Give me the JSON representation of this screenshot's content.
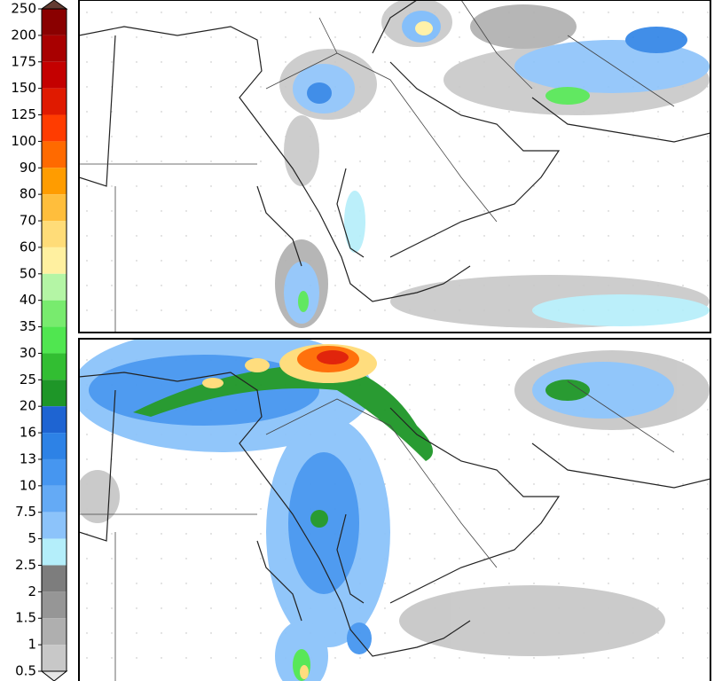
{
  "colorbar": {
    "labels": [
      250,
      200,
      175,
      150,
      125,
      100,
      90,
      80,
      70,
      60,
      50,
      40,
      35,
      30,
      25,
      20,
      16,
      13,
      10,
      7.5,
      5,
      2.5,
      2,
      1.5,
      1,
      0.5
    ],
    "colors": [
      "#8a0000",
      "#a80000",
      "#c40000",
      "#e01a00",
      "#ff3c00",
      "#ff6a00",
      "#ff9c00",
      "#ffbe3c",
      "#ffdc78",
      "#fff0a0",
      "#b4f5a5",
      "#78eb6e",
      "#50e650",
      "#32be32",
      "#1e9628",
      "#1e64d2",
      "#2d82e6",
      "#4696f0",
      "#64aaf5",
      "#8cc3fa",
      "#b4eefa",
      "#7d7d7d",
      "#969696",
      "#afafaf",
      "#c8c8c8"
    ],
    "over_color": "#643c32",
    "under_color": "#e6e6e6"
  }
}
